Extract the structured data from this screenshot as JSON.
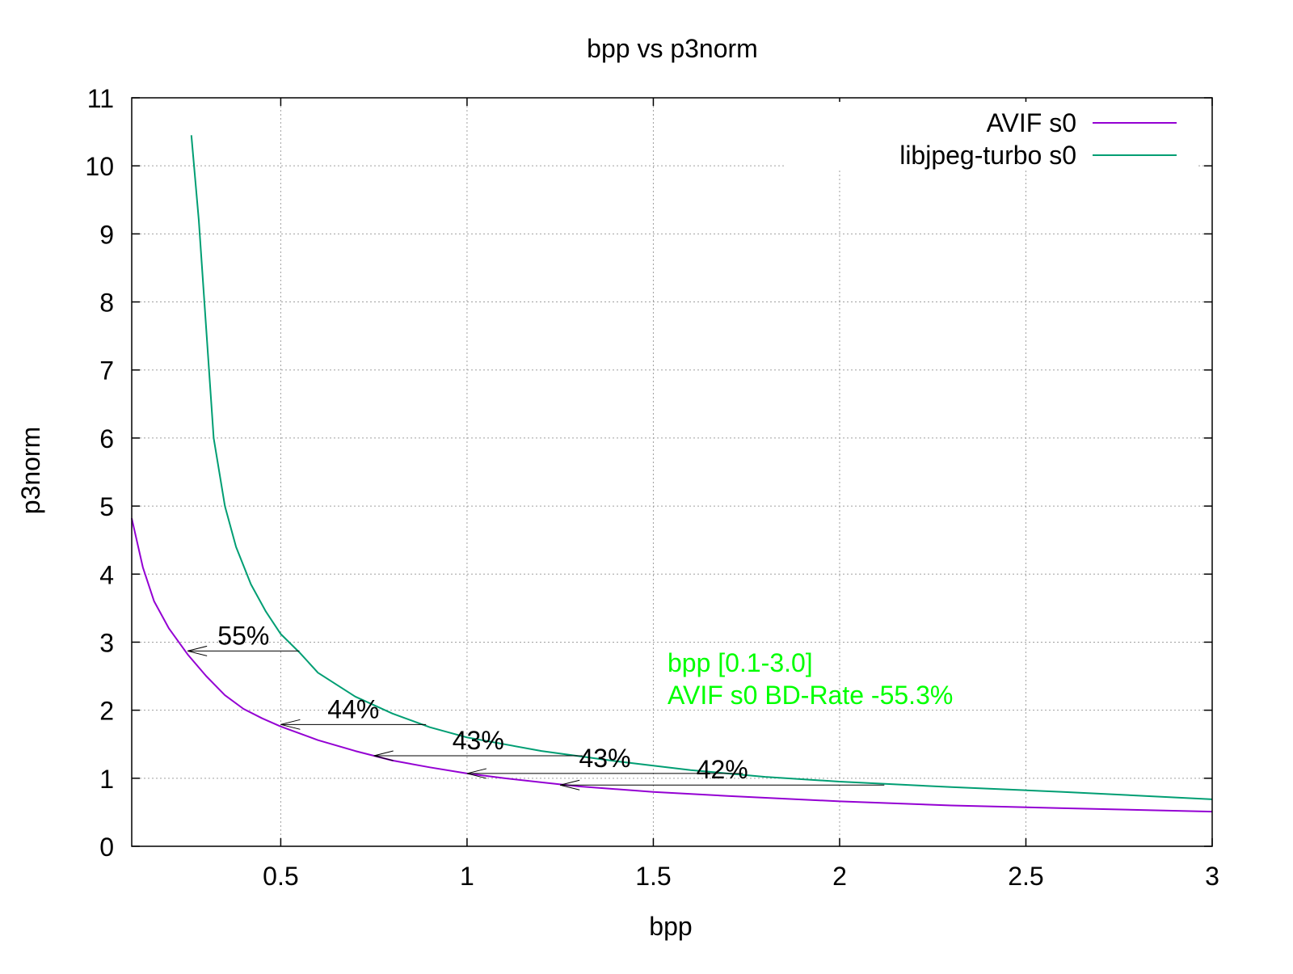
{
  "chart_data": {
    "type": "line",
    "title": "bpp vs p3norm",
    "xlabel": "bpp",
    "ylabel": "p3norm",
    "xlim": [
      0.1,
      3
    ],
    "ylim": [
      0,
      11
    ],
    "x_ticks": [
      "0.5",
      "1",
      "1.5",
      "2",
      "2.5",
      "3"
    ],
    "x_tick_values": [
      0.5,
      1,
      1.5,
      2,
      2.5,
      3
    ],
    "y_ticks": [
      "0",
      "1",
      "2",
      "3",
      "4",
      "5",
      "6",
      "7",
      "8",
      "9",
      "10",
      "11"
    ],
    "y_tick_values": [
      0,
      1,
      2,
      3,
      4,
      5,
      6,
      7,
      8,
      9,
      10,
      11
    ],
    "grid": true,
    "legend_position": "top-right",
    "series": [
      {
        "name": "AVIF s0",
        "color": "#9400d3",
        "x": [
          0.1,
          0.13,
          0.16,
          0.2,
          0.25,
          0.3,
          0.35,
          0.4,
          0.45,
          0.5,
          0.6,
          0.7,
          0.8,
          0.9,
          1.0,
          1.1,
          1.2,
          1.3,
          1.5,
          1.7,
          2.0,
          2.3,
          2.6,
          3.0
        ],
        "y": [
          4.82,
          4.1,
          3.6,
          3.2,
          2.82,
          2.5,
          2.22,
          2.02,
          1.88,
          1.76,
          1.56,
          1.4,
          1.26,
          1.16,
          1.07,
          1.0,
          0.94,
          0.88,
          0.8,
          0.74,
          0.66,
          0.6,
          0.56,
          0.51
        ]
      },
      {
        "name": "libjpeg-turbo s0",
        "color": "#009e73",
        "x": [
          0.26,
          0.28,
          0.3,
          0.32,
          0.35,
          0.38,
          0.42,
          0.46,
          0.5,
          0.55,
          0.6,
          0.7,
          0.8,
          0.9,
          1.0,
          1.2,
          1.4,
          1.6,
          1.8,
          2.0,
          2.3,
          2.6,
          3.0
        ],
        "y": [
          10.45,
          9.2,
          7.6,
          6.0,
          5.0,
          4.4,
          3.85,
          3.45,
          3.12,
          2.85,
          2.55,
          2.2,
          1.95,
          1.75,
          1.6,
          1.4,
          1.25,
          1.12,
          1.02,
          0.95,
          0.87,
          0.8,
          0.69
        ]
      }
    ],
    "savings_arrows": [
      {
        "label": "55%",
        "from_x": 0.55,
        "to_x": 0.25,
        "y": 2.87
      },
      {
        "label": "44%",
        "from_x": 0.89,
        "to_x": 0.5,
        "y": 1.79
      },
      {
        "label": "43%",
        "from_x": 1.31,
        "to_x": 0.75,
        "y": 1.33
      },
      {
        "label": "43%",
        "from_x": 1.74,
        "to_x": 1.0,
        "y": 1.07
      },
      {
        "label": "42%",
        "from_x": 2.12,
        "to_x": 1.25,
        "y": 0.9
      }
    ],
    "annotation": {
      "lines": [
        "bpp [0.1-3.0]",
        "AVIF s0 BD-Rate -55.3%"
      ],
      "color": "#00ff00"
    }
  }
}
